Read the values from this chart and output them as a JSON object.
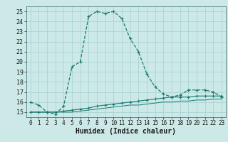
{
  "xlabel": "Humidex (Indice chaleur)",
  "background_color": "#cce9e8",
  "grid_color": "#aad4d2",
  "line_color": "#1a7a6e",
  "xlim": [
    -0.5,
    23.5
  ],
  "ylim": [
    14.5,
    25.5
  ],
  "x_ticks": [
    0,
    1,
    2,
    3,
    4,
    5,
    6,
    7,
    8,
    9,
    10,
    11,
    12,
    13,
    14,
    15,
    16,
    17,
    18,
    19,
    20,
    21,
    22,
    23
  ],
  "y_ticks": [
    15,
    16,
    17,
    18,
    19,
    20,
    21,
    22,
    23,
    24,
    25
  ],
  "main_x": [
    0,
    1,
    2,
    3,
    4,
    5,
    6,
    7,
    8,
    9,
    10,
    11,
    12,
    13,
    14,
    15,
    16,
    17,
    18,
    19,
    20,
    21,
    22,
    23
  ],
  "main_y": [
    16.0,
    15.7,
    15.0,
    14.8,
    15.6,
    19.5,
    20.0,
    24.5,
    25.0,
    24.8,
    25.0,
    24.3,
    22.3,
    21.0,
    18.8,
    17.5,
    16.8,
    16.5,
    16.7,
    17.2,
    17.2,
    17.2,
    17.0,
    16.5
  ],
  "line2_x": [
    0,
    1,
    2,
    3,
    4,
    5,
    6,
    7,
    8,
    9,
    10,
    11,
    12,
    13,
    14,
    15,
    16,
    17,
    18,
    19,
    20,
    21,
    22,
    23
  ],
  "line2_y": [
    15.0,
    15.0,
    15.0,
    15.0,
    15.1,
    15.2,
    15.3,
    15.4,
    15.6,
    15.7,
    15.8,
    15.9,
    16.0,
    16.1,
    16.2,
    16.3,
    16.4,
    16.5,
    16.5,
    16.5,
    16.6,
    16.6,
    16.6,
    16.6
  ],
  "line3_x": [
    0,
    1,
    2,
    3,
    4,
    5,
    6,
    7,
    8,
    9,
    10,
    11,
    12,
    13,
    14,
    15,
    16,
    17,
    18,
    19,
    20,
    21,
    22,
    23
  ],
  "line3_y": [
    15.0,
    15.0,
    15.0,
    15.0,
    15.0,
    15.0,
    15.1,
    15.2,
    15.3,
    15.4,
    15.5,
    15.6,
    15.7,
    15.7,
    15.8,
    15.9,
    16.0,
    16.0,
    16.1,
    16.1,
    16.2,
    16.2,
    16.3,
    16.3
  ],
  "tick_fontsize": 6,
  "xlabel_fontsize": 7
}
